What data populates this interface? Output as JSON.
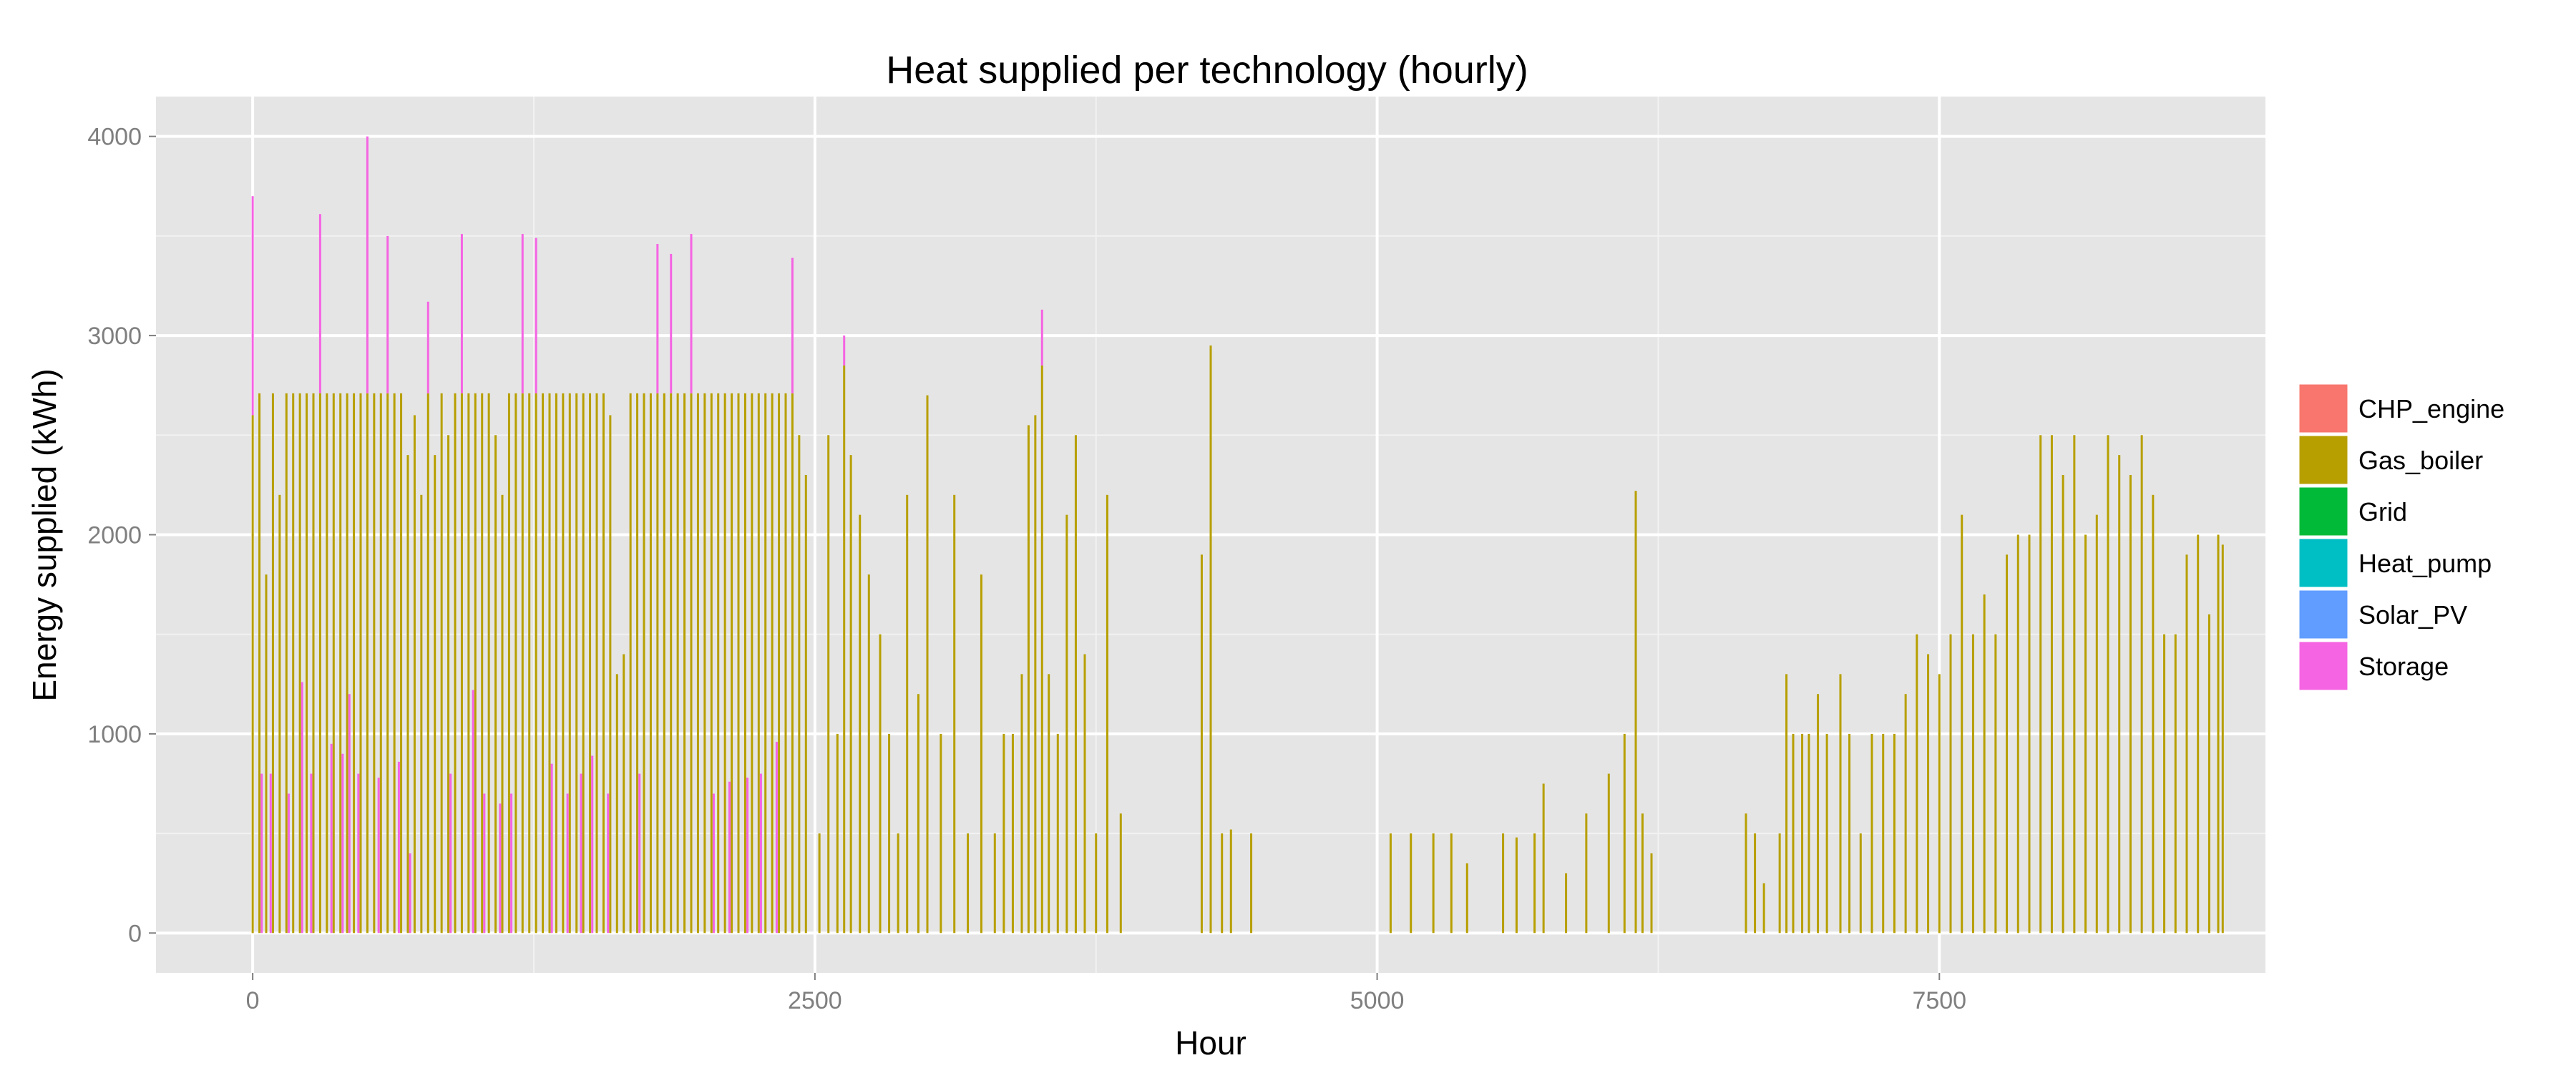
{
  "chart_data": {
    "type": "bar",
    "title": "Heat supplied per technology (hourly)",
    "xlabel": "Hour",
    "ylabel": "Energy supplied (kWh)",
    "xlim": [
      -430,
      8950
    ],
    "ylim": [
      -200,
      4200
    ],
    "x_ticks": [
      0,
      2500,
      5000,
      7500
    ],
    "x_tick_labels": [
      "0",
      "2500",
      "5000",
      "7500"
    ],
    "y_ticks": [
      0,
      1000,
      2000,
      3000,
      4000
    ],
    "y_tick_labels": [
      "0",
      "1000",
      "2000",
      "3000",
      "4000"
    ],
    "stacked": true,
    "legend_position": "right",
    "series": [
      {
        "name": "CHP_engine",
        "color": "#F8766D",
        "values": []
      },
      {
        "name": "Gas_boiler",
        "color": "#B79F00",
        "values": [
          [
            0,
            2600
          ],
          [
            30,
            2710
          ],
          [
            60,
            1800
          ],
          [
            90,
            2710
          ],
          [
            120,
            2200
          ],
          [
            150,
            2710
          ],
          [
            180,
            2710
          ],
          [
            210,
            2710
          ],
          [
            240,
            2710
          ],
          [
            270,
            2710
          ],
          [
            300,
            2710
          ],
          [
            330,
            2710
          ],
          [
            360,
            2710
          ],
          [
            390,
            2710
          ],
          [
            420,
            2710
          ],
          [
            450,
            2710
          ],
          [
            480,
            2710
          ],
          [
            510,
            2710
          ],
          [
            540,
            2710
          ],
          [
            570,
            2710
          ],
          [
            600,
            2710
          ],
          [
            630,
            2710
          ],
          [
            660,
            2710
          ],
          [
            690,
            2400
          ],
          [
            720,
            2600
          ],
          [
            750,
            2200
          ],
          [
            780,
            2710
          ],
          [
            810,
            2400
          ],
          [
            840,
            2710
          ],
          [
            870,
            2500
          ],
          [
            900,
            2710
          ],
          [
            930,
            2710
          ],
          [
            960,
            2710
          ],
          [
            990,
            2710
          ],
          [
            1020,
            2710
          ],
          [
            1050,
            2710
          ],
          [
            1080,
            2500
          ],
          [
            1110,
            2200
          ],
          [
            1140,
            2710
          ],
          [
            1170,
            2710
          ],
          [
            1200,
            2710
          ],
          [
            1230,
            2710
          ],
          [
            1260,
            2710
          ],
          [
            1290,
            2710
          ],
          [
            1320,
            2710
          ],
          [
            1350,
            2710
          ],
          [
            1380,
            2710
          ],
          [
            1410,
            2710
          ],
          [
            1440,
            2710
          ],
          [
            1470,
            2710
          ],
          [
            1500,
            2710
          ],
          [
            1530,
            2710
          ],
          [
            1560,
            2710
          ],
          [
            1590,
            2600
          ],
          [
            1620,
            1300
          ],
          [
            1650,
            1400
          ],
          [
            1680,
            2710
          ],
          [
            1710,
            2710
          ],
          [
            1740,
            2710
          ],
          [
            1770,
            2710
          ],
          [
            1800,
            2710
          ],
          [
            1830,
            2710
          ],
          [
            1860,
            2710
          ],
          [
            1890,
            2710
          ],
          [
            1920,
            2710
          ],
          [
            1950,
            2710
          ],
          [
            1980,
            2710
          ],
          [
            2010,
            2710
          ],
          [
            2040,
            2710
          ],
          [
            2070,
            2710
          ],
          [
            2100,
            2710
          ],
          [
            2130,
            2710
          ],
          [
            2160,
            2710
          ],
          [
            2190,
            2710
          ],
          [
            2220,
            2710
          ],
          [
            2250,
            2710
          ],
          [
            2280,
            2710
          ],
          [
            2310,
            2710
          ],
          [
            2340,
            2710
          ],
          [
            2370,
            2710
          ],
          [
            2400,
            2710
          ],
          [
            2430,
            2500
          ],
          [
            2460,
            2300
          ],
          [
            2520,
            500
          ],
          [
            2560,
            2500
          ],
          [
            2600,
            1000
          ],
          [
            2630,
            2850
          ],
          [
            2660,
            2400
          ],
          [
            2700,
            2100
          ],
          [
            2740,
            1800
          ],
          [
            2790,
            1500
          ],
          [
            2830,
            1000
          ],
          [
            2870,
            500
          ],
          [
            2910,
            2200
          ],
          [
            2960,
            1200
          ],
          [
            3000,
            2700
          ],
          [
            3060,
            1000
          ],
          [
            3120,
            2200
          ],
          [
            3180,
            500
          ],
          [
            3240,
            1800
          ],
          [
            3300,
            500
          ],
          [
            3340,
            1000
          ],
          [
            3380,
            1000
          ],
          [
            3420,
            1300
          ],
          [
            3450,
            2550
          ],
          [
            3480,
            2600
          ],
          [
            3510,
            2850
          ],
          [
            3540,
            1300
          ],
          [
            3580,
            1000
          ],
          [
            3620,
            2100
          ],
          [
            3660,
            2500
          ],
          [
            3700,
            1400
          ],
          [
            3750,
            500
          ],
          [
            3800,
            2200
          ],
          [
            3860,
            600
          ],
          [
            4220,
            1900
          ],
          [
            4260,
            2950
          ],
          [
            4310,
            500
          ],
          [
            4350,
            520
          ],
          [
            4440,
            500
          ],
          [
            5060,
            500
          ],
          [
            5150,
            500
          ],
          [
            5250,
            500
          ],
          [
            5330,
            500
          ],
          [
            5400,
            350
          ],
          [
            5560,
            500
          ],
          [
            5620,
            480
          ],
          [
            5700,
            500
          ],
          [
            5740,
            750
          ],
          [
            5840,
            300
          ],
          [
            5930,
            600
          ],
          [
            6030,
            800
          ],
          [
            6100,
            1000
          ],
          [
            6150,
            2220
          ],
          [
            6180,
            600
          ],
          [
            6220,
            400
          ],
          [
            6640,
            600
          ],
          [
            6680,
            500
          ],
          [
            6720,
            250
          ],
          [
            6790,
            500
          ],
          [
            6820,
            1300
          ],
          [
            6850,
            1000
          ],
          [
            6890,
            1000
          ],
          [
            6920,
            1000
          ],
          [
            6960,
            1200
          ],
          [
            7000,
            1000
          ],
          [
            7060,
            1300
          ],
          [
            7100,
            1000
          ],
          [
            7150,
            500
          ],
          [
            7200,
            1000
          ],
          [
            7250,
            1000
          ],
          [
            7300,
            1000
          ],
          [
            7350,
            1200
          ],
          [
            7400,
            1500
          ],
          [
            7450,
            1400
          ],
          [
            7500,
            1300
          ],
          [
            7550,
            1500
          ],
          [
            7600,
            2100
          ],
          [
            7650,
            1500
          ],
          [
            7700,
            1700
          ],
          [
            7750,
            1500
          ],
          [
            7800,
            1900
          ],
          [
            7850,
            2000
          ],
          [
            7900,
            2000
          ],
          [
            7950,
            2500
          ],
          [
            8000,
            2500
          ],
          [
            8050,
            2300
          ],
          [
            8100,
            2500
          ],
          [
            8150,
            2000
          ],
          [
            8200,
            2100
          ],
          [
            8250,
            2500
          ],
          [
            8300,
            2400
          ],
          [
            8350,
            2300
          ],
          [
            8400,
            2500
          ],
          [
            8450,
            2200
          ],
          [
            8500,
            1500
          ],
          [
            8550,
            1500
          ],
          [
            8600,
            1900
          ],
          [
            8650,
            2000
          ],
          [
            8700,
            1600
          ],
          [
            8740,
            2000
          ],
          [
            8760,
            1950
          ]
        ]
      },
      {
        "name": "Grid",
        "color": "#00BA38",
        "values": []
      },
      {
        "name": "Heat_pump",
        "color": "#00BFC4",
        "values": []
      },
      {
        "name": "Solar_PV",
        "color": "#619CFF",
        "values": []
      },
      {
        "name": "Storage",
        "color": "#F564E3",
        "values": [
          [
            0,
            1100
          ],
          [
            40,
            800
          ],
          [
            80,
            800
          ],
          [
            160,
            700
          ],
          [
            220,
            1260
          ],
          [
            260,
            800
          ],
          [
            300,
            900
          ],
          [
            350,
            950
          ],
          [
            400,
            900
          ],
          [
            430,
            1200
          ],
          [
            470,
            800
          ],
          [
            510,
            1290
          ],
          [
            560,
            780
          ],
          [
            600,
            790
          ],
          [
            650,
            860
          ],
          [
            700,
            400
          ],
          [
            780,
            460
          ],
          [
            880,
            800
          ],
          [
            930,
            800
          ],
          [
            980,
            1220
          ],
          [
            1030,
            700
          ],
          [
            1100,
            650
          ],
          [
            1150,
            700
          ],
          [
            1200,
            800
          ],
          [
            1260,
            780
          ],
          [
            1330,
            850
          ],
          [
            1400,
            700
          ],
          [
            1460,
            800
          ],
          [
            1510,
            890
          ],
          [
            1580,
            700
          ],
          [
            1720,
            800
          ],
          [
            1800,
            750
          ],
          [
            1860,
            700
          ],
          [
            1950,
            800
          ],
          [
            2050,
            700
          ],
          [
            2120,
            760
          ],
          [
            2200,
            780
          ],
          [
            2260,
            800
          ],
          [
            2330,
            960
          ],
          [
            2400,
            680
          ],
          [
            2630,
            150
          ],
          [
            3510,
            280
          ],
          [
            4260,
            0
          ]
        ]
      }
    ]
  }
}
